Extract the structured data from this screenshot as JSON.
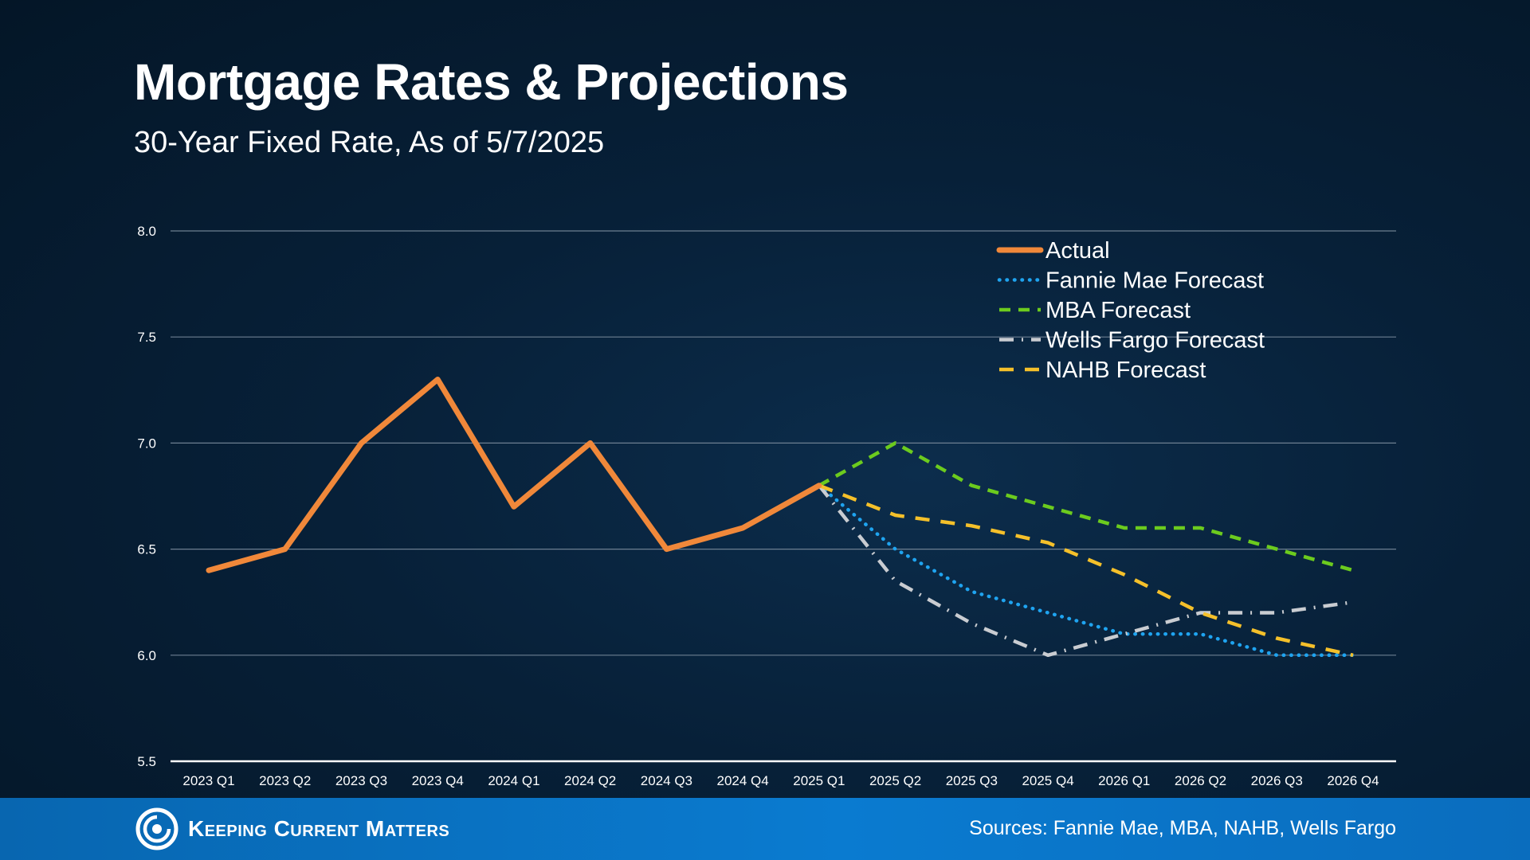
{
  "header": {
    "title": "Mortgage Rates & Projections",
    "subtitle": "30-Year Fixed Rate, As of 5/7/2025"
  },
  "footer": {
    "brand": "Keeping Current Matters",
    "sources": "Sources: Fannie Mae, MBA, NAHB, Wells Fargo"
  },
  "chart_data": {
    "type": "line",
    "x": [
      "2023 Q1",
      "2023 Q2",
      "2023 Q3",
      "2023 Q4",
      "2024 Q1",
      "2024 Q2",
      "2024 Q3",
      "2024 Q4",
      "2025 Q1",
      "2025 Q2",
      "2025 Q3",
      "2025 Q4",
      "2026 Q1",
      "2026 Q2",
      "2026 Q3",
      "2026 Q4"
    ],
    "ylim": [
      5.5,
      8.0
    ],
    "yticks": [
      "5.5",
      "6.0",
      "6.5",
      "7.0",
      "7.5",
      "8.0"
    ],
    "grid": true,
    "legend": "top-right",
    "series": [
      {
        "name": "Actual",
        "color": "#f0883a",
        "style": "solid",
        "values": [
          6.4,
          6.5,
          7.0,
          7.3,
          6.7,
          7.0,
          6.5,
          6.6,
          6.8,
          null,
          null,
          null,
          null,
          null,
          null,
          null
        ]
      },
      {
        "name": "Fannie Mae Forecast",
        "color": "#1fa4f0",
        "style": "dotted",
        "values": [
          null,
          null,
          null,
          null,
          null,
          null,
          null,
          null,
          6.8,
          6.5,
          6.3,
          6.2,
          6.1,
          6.1,
          6.0,
          6.0
        ]
      },
      {
        "name": "MBA Forecast",
        "color": "#6ccb1e",
        "style": "dashed",
        "values": [
          null,
          null,
          null,
          null,
          null,
          null,
          null,
          null,
          6.8,
          7.0,
          6.8,
          6.7,
          6.6,
          6.6,
          6.5,
          6.4
        ]
      },
      {
        "name": "Wells Fargo Forecast",
        "color": "#c9ccd1",
        "style": "dashdot",
        "values": [
          null,
          null,
          null,
          null,
          null,
          null,
          null,
          null,
          6.8,
          6.35,
          6.15,
          6.0,
          6.1,
          6.2,
          6.2,
          6.25
        ]
      },
      {
        "name": "NAHB Forecast",
        "color": "#f5c02a",
        "style": "longdash",
        "values": [
          null,
          null,
          null,
          null,
          null,
          null,
          null,
          null,
          6.8,
          6.66,
          6.61,
          6.53,
          6.38,
          6.2,
          6.08,
          6.0
        ]
      }
    ]
  }
}
